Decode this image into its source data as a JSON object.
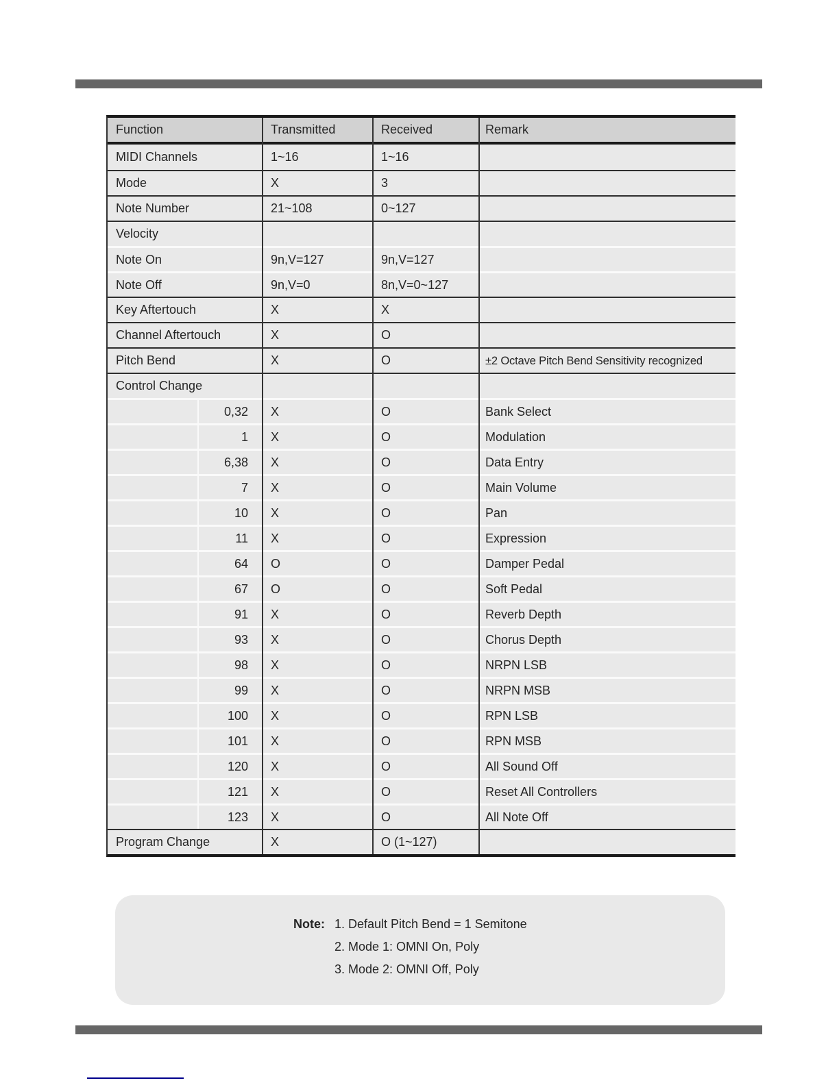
{
  "colors": {
    "rule_bar": "#666666",
    "footer_underline": "#00008b",
    "table_row_bg": "#e9e9e9",
    "table_header_bg": "#d2d2d2"
  },
  "table": {
    "headers": [
      "Function",
      "Transmitted",
      "Received",
      "Remark"
    ],
    "rows": [
      {
        "type": "main",
        "function": "MIDI Channels",
        "transmitted": "1~16",
        "received": "1~16",
        "remark": "",
        "sep": "dark"
      },
      {
        "type": "main",
        "function": "Mode",
        "transmitted": "X",
        "received": "3",
        "remark": "",
        "sep": "dark"
      },
      {
        "type": "main",
        "function": "Note Number",
        "transmitted": "21~108",
        "received": "0~127",
        "remark": "",
        "sep": "dark"
      },
      {
        "type": "main",
        "function": "Velocity",
        "transmitted": "",
        "received": "",
        "remark": "",
        "sep": "dark"
      },
      {
        "type": "main",
        "function": "Note On",
        "transmitted": "9n,V=127",
        "received": "9n,V=127",
        "remark": "",
        "sep": "light"
      },
      {
        "type": "main",
        "function": "Note Off",
        "transmitted": "9n,V=0",
        "received": "8n,V=0~127",
        "remark": "",
        "sep": "light"
      },
      {
        "type": "main",
        "function": "Key Aftertouch",
        "transmitted": "X",
        "received": "X",
        "remark": "",
        "sep": "dark"
      },
      {
        "type": "main",
        "function": "Channel Aftertouch",
        "transmitted": "X",
        "received": "O",
        "remark": "",
        "sep": "dark"
      },
      {
        "type": "main",
        "function": "Pitch Bend",
        "transmitted": "X",
        "received": "O",
        "remark": "±2 Octave Pitch Bend Sensitivity recognized",
        "sep": "dark"
      },
      {
        "type": "main",
        "function": "Control Change",
        "transmitted": "",
        "received": "",
        "remark": "",
        "sep": "dark"
      },
      {
        "type": "sub",
        "function": "0,32",
        "transmitted": "X",
        "received": "O",
        "remark": "Bank Select",
        "sep": "light"
      },
      {
        "type": "sub",
        "function": "1",
        "transmitted": "X",
        "received": "O",
        "remark": "Modulation",
        "sep": "light"
      },
      {
        "type": "sub",
        "function": "6,38",
        "transmitted": "X",
        "received": "O",
        "remark": "Data Entry",
        "sep": "light"
      },
      {
        "type": "sub",
        "function": "7",
        "transmitted": "X",
        "received": "O",
        "remark": "Main Volume",
        "sep": "light"
      },
      {
        "type": "sub",
        "function": "10",
        "transmitted": "X",
        "received": "O",
        "remark": "Pan",
        "sep": "light"
      },
      {
        "type": "sub",
        "function": "11",
        "transmitted": "X",
        "received": "O",
        "remark": "Expression",
        "sep": "light"
      },
      {
        "type": "sub",
        "function": "64",
        "transmitted": "O",
        "received": "O",
        "remark": "Damper Pedal",
        "sep": "light"
      },
      {
        "type": "sub",
        "function": "67",
        "transmitted": "O",
        "received": "O",
        "remark": "Soft Pedal",
        "sep": "light"
      },
      {
        "type": "sub",
        "function": "91",
        "transmitted": "X",
        "received": "O",
        "remark": "Reverb Depth",
        "sep": "light"
      },
      {
        "type": "sub",
        "function": "93",
        "transmitted": "X",
        "received": "O",
        "remark": "Chorus Depth",
        "sep": "light"
      },
      {
        "type": "sub",
        "function": "98",
        "transmitted": "X",
        "received": "O",
        "remark": "NRPN LSB",
        "sep": "light"
      },
      {
        "type": "sub",
        "function": "99",
        "transmitted": "X",
        "received": "O",
        "remark": "NRPN MSB",
        "sep": "light"
      },
      {
        "type": "sub",
        "function": "100",
        "transmitted": "X",
        "received": "O",
        "remark": "RPN LSB",
        "sep": "light"
      },
      {
        "type": "sub",
        "function": "101",
        "transmitted": "X",
        "received": "O",
        "remark": "RPN MSB",
        "sep": "light"
      },
      {
        "type": "sub",
        "function": "120",
        "transmitted": "X",
        "received": "O",
        "remark": "All Sound Off",
        "sep": "light"
      },
      {
        "type": "sub",
        "function": "121",
        "transmitted": "X",
        "received": "O",
        "remark": "Reset All Controllers",
        "sep": "light"
      },
      {
        "type": "sub",
        "function": "123",
        "transmitted": "X",
        "received": "O",
        "remark": "All Note Off",
        "sep": "light"
      },
      {
        "type": "main",
        "function": "Program Change",
        "transmitted": "X",
        "received": "O (1~127)",
        "remark": "",
        "sep": "dark"
      }
    ]
  },
  "note": {
    "label": "Note:",
    "items": [
      "1. Default Pitch Bend = 1 Semitone",
      "2. Mode 1: OMNI On, Poly",
      "3. Mode 2: OMNI Off, Poly"
    ]
  }
}
